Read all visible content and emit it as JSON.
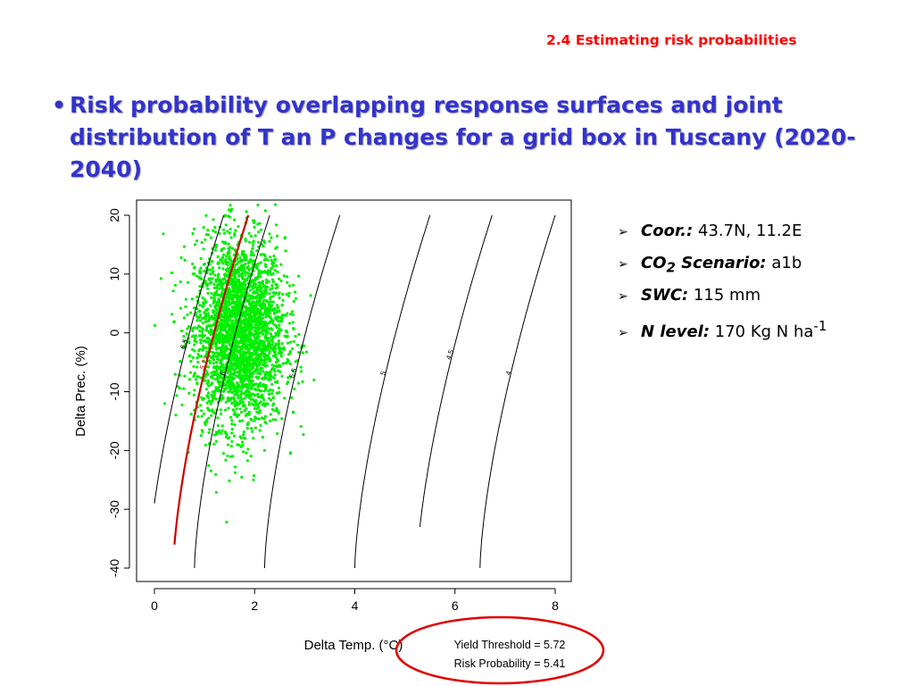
{
  "slide": {
    "section_title": "2.4 Estimating risk probabilities",
    "bullet_char": "•",
    "bullet_text": "Risk probability overlapping response surfaces and joint distribution of T an P changes for a grid box in Tuscany (2020-2040)"
  },
  "info": {
    "arrow": "➢",
    "items": [
      {
        "key": "Coor.:",
        "value": "43.7N, 11.2E"
      },
      {
        "key": "CO",
        "sub": "2",
        "key_tail": " Scenario:",
        "value": "a1b"
      },
      {
        "key": "SWC:",
        "value": "115 mm"
      },
      {
        "key": "N level:",
        "value": "170 Kg N ha",
        "sup": "-1"
      }
    ]
  },
  "chart_data": {
    "type": "scatter",
    "xlabel": "Delta Temp. (°C)",
    "ylabel": "Delta Prec. (%)",
    "xlim": [
      0,
      8
    ],
    "ylim": [
      -40,
      20
    ],
    "xticks": [
      "0",
      "2",
      "4",
      "6",
      "8"
    ],
    "yticks": [
      "-40",
      "-30",
      "-20",
      "-10",
      "0",
      "10",
      "20"
    ],
    "grid": false,
    "point_color": "#00ee00",
    "contour_color": "#000000",
    "threshold_color": "#cc0000",
    "scatter": {
      "n_points": 3000,
      "center": [
        1.7,
        0
      ],
      "sd": [
        0.45,
        8
      ]
    },
    "contours": [
      {
        "label": "6.5",
        "t0": 0,
        "p0": -29
      },
      {
        "label": "6",
        "t0": 0.8,
        "p0": -40
      },
      {
        "label": "5.5",
        "t0": 2.2,
        "p0": -40
      },
      {
        "label": "5",
        "t0": 4.0,
        "p0": -40
      },
      {
        "label": "4.5",
        "t0": 5.3,
        "p0": -33
      },
      {
        "label": "4",
        "t0": 6.5,
        "p0": -40
      }
    ],
    "threshold_contour": {
      "label": "5.72",
      "t0": 0.4,
      "p0": -36
    },
    "annotation": {
      "yield_threshold": "Yield Threshold = 5.72",
      "risk_probability": "Risk Probability = 5.41",
      "highlight_color": "#e00000"
    }
  }
}
